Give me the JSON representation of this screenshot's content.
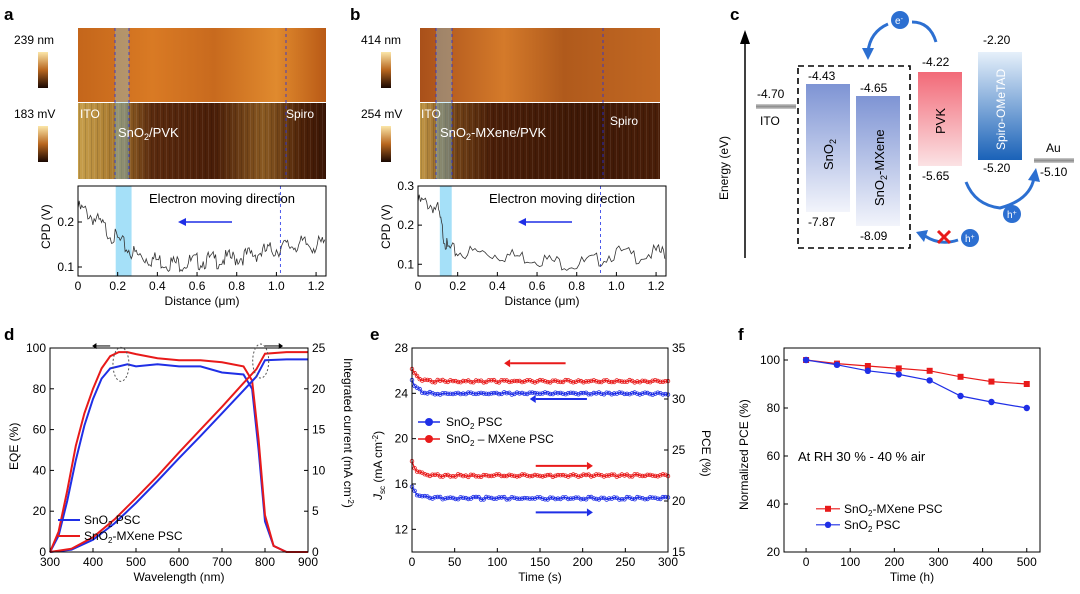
{
  "colors": {
    "blue": "#1f2fe6",
    "red": "#e81a1a",
    "highlight": "#7fd3f5",
    "afm_dark": "#3a1505",
    "afm_light": "#e8b061"
  },
  "panels": {
    "a": {
      "label": "a",
      "height_scale": "239 nm",
      "cpd_scale": "183  mV",
      "ito": "ITO",
      "layer": "SnO",
      "layer_sub": "2",
      "layer_suffix": "/PVK",
      "spiro": "Spiro"
    },
    "b": {
      "label": "b",
      "height_scale": "414 nm",
      "cpd_scale": "254  mV",
      "ito": "ITO",
      "layer": "SnO",
      "layer_sub": "2",
      "layer_suffix": "-MXene/PVK",
      "spiro": "Spiro"
    },
    "c": {
      "label": "c",
      "ylabel": "Energy (eV)",
      "ito": "ITO",
      "ito_level": "-4.70",
      "sno2": "SnO",
      "sno2_sub": "2",
      "sno2_top": "-4.43",
      "sno2_bottom": "-7.87",
      "mxene_name": "SnO",
      "mxene_sub": "2",
      "mxene_suffix": "-MXene",
      "mxene_top": "-4.65",
      "mxene_bottom": "-8.09",
      "pvk": "PVK",
      "pvk_top": "-4.22",
      "pvk_bottom": "-5.65",
      "spiro": "Spiro-OMeTAD",
      "spiro_top": "-2.20",
      "spiro_bottom": "-5.20",
      "au": "Au",
      "au_level": "-5.10",
      "electron": "e",
      "electron_sup": "-",
      "hole": "h",
      "hole_sup": "+"
    }
  },
  "chart_data": [
    {
      "panel": "a",
      "type": "line",
      "title": "Electron moving direction",
      "xlabel": "Distance (μm)",
      "ylabel": "CPD  (V)",
      "xlim": [
        0,
        1.25
      ],
      "ylim": [
        0.08,
        0.28
      ],
      "xticks": [
        "0",
        "0.2",
        "0.4",
        "0.6",
        "0.8",
        "1.0",
        "1.2"
      ],
      "yticks": [
        "0.1",
        "0.2"
      ],
      "highlight_range": [
        0.19,
        0.27
      ],
      "marker_line_x": 1.02,
      "x": [
        0,
        0.05,
        0.1,
        0.15,
        0.2,
        0.25,
        0.3,
        0.35,
        0.4,
        0.45,
        0.5,
        0.55,
        0.6,
        0.65,
        0.7,
        0.75,
        0.8,
        0.85,
        0.9,
        0.95,
        1.0,
        1.05,
        1.1,
        1.15,
        1.2,
        1.25
      ],
      "y": [
        0.24,
        0.23,
        0.21,
        0.19,
        0.17,
        0.15,
        0.135,
        0.13,
        0.125,
        0.12,
        0.118,
        0.12,
        0.122,
        0.125,
        0.125,
        0.128,
        0.13,
        0.135,
        0.14,
        0.145,
        0.15,
        0.155,
        0.16,
        0.16,
        0.158,
        0.162
      ]
    },
    {
      "panel": "b",
      "type": "line",
      "title": "Electron moving direction",
      "xlabel": "Distance (μm)",
      "ylabel": "CPD  (V)",
      "xlim": [
        0,
        1.25
      ],
      "ylim": [
        0.07,
        0.3
      ],
      "xticks": [
        "0",
        "0.2",
        "0.4",
        "0.6",
        "0.8",
        "1.0",
        "1.2"
      ],
      "yticks": [
        "0.1",
        "0.2",
        "0.3"
      ],
      "highlight_range": [
        0.11,
        0.17
      ],
      "marker_line_x": 0.92,
      "x": [
        0,
        0.05,
        0.1,
        0.13,
        0.15,
        0.2,
        0.3,
        0.4,
        0.5,
        0.6,
        0.7,
        0.8,
        0.9,
        1.0,
        1.1,
        1.2,
        1.25
      ],
      "y": [
        0.27,
        0.265,
        0.25,
        0.18,
        0.15,
        0.14,
        0.14,
        0.135,
        0.13,
        0.125,
        0.115,
        0.11,
        0.12,
        0.14,
        0.13,
        0.14,
        0.14
      ]
    },
    {
      "panel": "d",
      "type": "line",
      "xlabel": "Wavelength (nm)",
      "ylabel": "EQE (%)",
      "y2label": "Integrated current (mA cm",
      "y2label_sup": "-2",
      "y2label_end": ")",
      "xlim": [
        300,
        900
      ],
      "ylim": [
        0,
        100
      ],
      "y2lim": [
        0,
        25
      ],
      "xticks": [
        "300",
        "400",
        "500",
        "600",
        "700",
        "800",
        "900"
      ],
      "yticks": [
        "0",
        "20",
        "40",
        "60",
        "80",
        "100"
      ],
      "y2ticks": [
        "0",
        "5",
        "10",
        "15",
        "20",
        "25"
      ],
      "legend": [
        "SnO2 PSC",
        "SnO2-MXene PSC"
      ],
      "legend_main": [
        "SnO",
        "SnO"
      ],
      "legend_sub": [
        "2",
        "2"
      ],
      "legend_suffix": [
        " PSC",
        "-MXene PSC"
      ],
      "series": [
        {
          "name": "SnO2 PSC",
          "axis": "left",
          "x": [
            300,
            320,
            340,
            360,
            380,
            400,
            420,
            440,
            460,
            480,
            500,
            550,
            600,
            650,
            700,
            750,
            770,
            785,
            800,
            820,
            850,
            900
          ],
          "values": [
            0,
            8,
            25,
            45,
            62,
            75,
            85,
            90,
            91,
            92,
            91,
            92,
            91,
            91,
            88,
            87,
            80,
            50,
            15,
            3,
            0,
            0
          ]
        },
        {
          "name": "SnO2-MXene PSC",
          "axis": "left",
          "x": [
            300,
            320,
            340,
            360,
            380,
            400,
            420,
            440,
            460,
            480,
            500,
            550,
            600,
            650,
            700,
            750,
            770,
            785,
            800,
            820,
            850,
            900
          ],
          "values": [
            0,
            10,
            30,
            52,
            68,
            80,
            90,
            96,
            98,
            98,
            97,
            95,
            94,
            94,
            93,
            91,
            84,
            55,
            18,
            3,
            0,
            0
          ]
        },
        {
          "name": "SnO2 PSC",
          "axis": "right",
          "x": [
            300,
            350,
            400,
            450,
            500,
            550,
            600,
            650,
            700,
            750,
            780,
            800,
            850,
            900
          ],
          "values": [
            0,
            0.3,
            1.5,
            3.5,
            6.0,
            8.7,
            11.5,
            14.2,
            17.0,
            19.8,
            21.5,
            23.5,
            23.6,
            23.6
          ]
        },
        {
          "name": "SnO2-MXene PSC",
          "axis": "right",
          "x": [
            300,
            350,
            400,
            450,
            500,
            550,
            600,
            650,
            700,
            750,
            780,
            800,
            850,
            900
          ],
          "values": [
            0,
            0.4,
            1.8,
            4.0,
            6.6,
            9.3,
            12.2,
            15.0,
            17.8,
            20.7,
            22.4,
            24.3,
            24.5,
            24.5
          ]
        }
      ]
    },
    {
      "panel": "e",
      "type": "scatter",
      "xlabel": "Time (s)",
      "ylabel": "J",
      "ylabel_sub": "sc",
      "ylabel_end": " (mA cm",
      "ylabel_sup": "-2",
      "ylabel_close": ")",
      "y2label": "PCE (%)",
      "xlim": [
        0,
        300
      ],
      "ylim": [
        10,
        28
      ],
      "y2lim": [
        15,
        35
      ],
      "xticks": [
        "0",
        "50",
        "100",
        "150",
        "200",
        "250",
        "300"
      ],
      "yticks": [
        "12",
        "16",
        "20",
        "24",
        "28"
      ],
      "y2ticks": [
        "15",
        "20",
        "25",
        "30",
        "35"
      ],
      "legend": [
        "SnO2 PSC",
        "SnO2 – MXene PSC"
      ],
      "legend_main": [
        "SnO",
        "SnO"
      ],
      "legend_sub": [
        "2",
        "2"
      ],
      "legend_suffix": [
        " PSC",
        " – MXene PSC"
      ],
      "series": [
        {
          "name": "SnO2-MXene PSC PCE",
          "axis": "right",
          "color": "red",
          "start": 33.0,
          "plateau": 31.8
        },
        {
          "name": "SnO2 PSC PCE",
          "axis": "right",
          "color": "blue",
          "start": 32.0,
          "plateau": 30.6
        },
        {
          "name": "SnO2-MXene PSC Jsc",
          "axis": "left",
          "color": "red",
          "start": 18.0,
          "plateau": 16.8
        },
        {
          "name": "SnO2 PSC Jsc",
          "axis": "left",
          "color": "blue",
          "start": 15.8,
          "plateau": 14.8
        }
      ]
    },
    {
      "panel": "f",
      "type": "line",
      "xlabel": "Time (h)",
      "ylabel": "Normalized PCE (%)",
      "annotation": "At RH 30 % - 40 % air",
      "xlim": [
        -50,
        530
      ],
      "ylim": [
        20,
        105
      ],
      "xticks": [
        "0",
        "100",
        "200",
        "300",
        "400",
        "500"
      ],
      "yticks": [
        "20",
        "40",
        "60",
        "80",
        "100"
      ],
      "legend": [
        "SnO2-MXene PSC",
        "SnO2 PSC"
      ],
      "legend_main": [
        "SnO",
        "SnO"
      ],
      "legend_sub": [
        "2",
        "2"
      ],
      "legend_suffix": [
        "-MXene PSC",
        " PSC"
      ],
      "x": [
        0,
        70,
        140,
        210,
        280,
        350,
        420,
        500
      ],
      "series": [
        {
          "name": "SnO2-MXene PSC",
          "values": [
            100,
            98.5,
            97.5,
            96.5,
            95.5,
            93,
            91,
            90
          ]
        },
        {
          "name": "SnO2 PSC",
          "values": [
            100,
            98,
            95.5,
            94,
            91.5,
            85,
            82.5,
            80
          ]
        }
      ]
    }
  ]
}
